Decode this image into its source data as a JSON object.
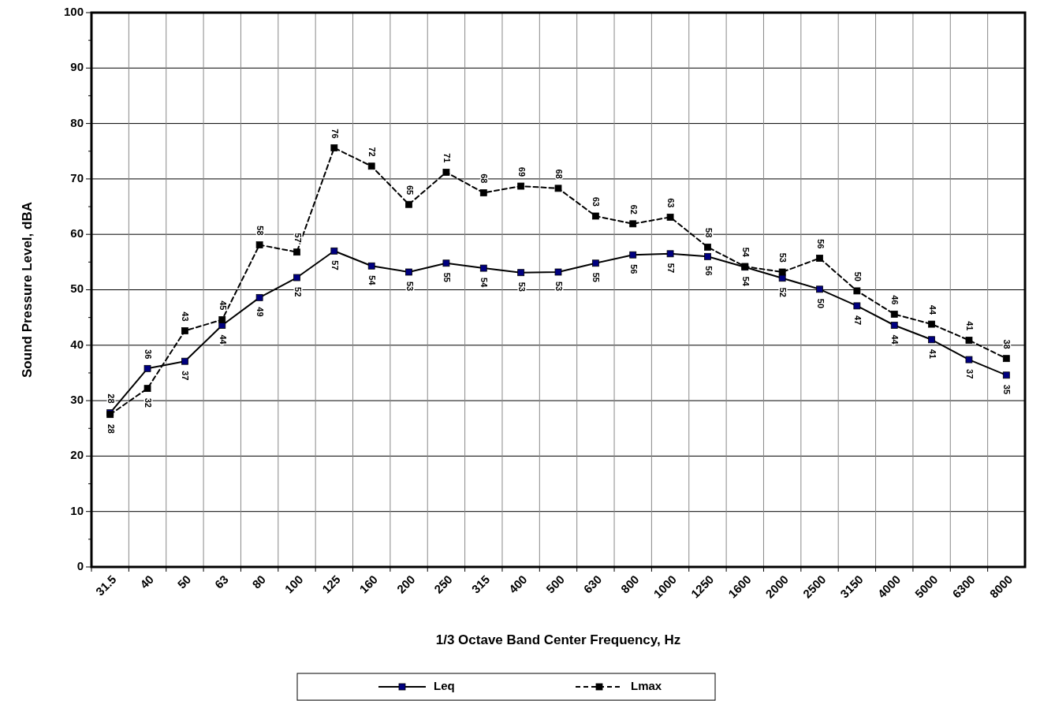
{
  "chart_data": {
    "type": "line",
    "xlabel": "1/3 Octave Band Center Frequency, Hz",
    "ylabel": "Sound Pressure Level, dBA",
    "categories": [
      "31.5",
      "40",
      "50",
      "63",
      "80",
      "100",
      "125",
      "160",
      "200",
      "250",
      "315",
      "400",
      "500",
      "630",
      "800",
      "1000",
      "1250",
      "1600",
      "2000",
      "2500",
      "3150",
      "4000",
      "5000",
      "6300",
      "8000"
    ],
    "series": [
      {
        "name": "Leq",
        "color": "#000080",
        "line_style": "solid",
        "values": [
          27.8,
          35.8,
          37.1,
          43.6,
          48.6,
          52.2,
          57.0,
          54.3,
          53.2,
          54.8,
          53.9,
          53.1,
          53.2,
          54.8,
          56.3,
          56.5,
          56.0,
          54.1,
          52.1,
          50.1,
          47.1,
          43.6,
          41.0,
          37.4,
          34.6
        ],
        "value_labels": [
          "28",
          "36",
          "37",
          "44",
          "49",
          "52",
          "57",
          "54",
          "53",
          "55",
          "54",
          "53",
          "53",
          "55",
          "56",
          "57",
          "56",
          "54",
          "52",
          "50",
          "47",
          "44",
          "41",
          "37",
          "35"
        ]
      },
      {
        "name": "Lmax",
        "color": "#000000",
        "line_style": "dashed",
        "values": [
          27.5,
          32.2,
          42.6,
          44.6,
          58.1,
          56.8,
          75.6,
          72.3,
          65.4,
          71.2,
          67.5,
          68.7,
          68.3,
          63.3,
          61.9,
          63.1,
          57.7,
          54.2,
          53.2,
          55.7,
          49.8,
          45.6,
          43.8,
          40.9,
          37.6
        ],
        "value_labels": [
          "28",
          "32",
          "43",
          "45",
          "58",
          "57",
          "76",
          "72",
          "65",
          "71",
          "68",
          "69",
          "68",
          "63",
          "62",
          "63",
          "58",
          "54",
          "53",
          "56",
          "50",
          "46",
          "44",
          "41",
          "38"
        ]
      }
    ],
    "ylim": [
      0,
      100
    ],
    "yticks": [
      0,
      10,
      20,
      30,
      40,
      50,
      60,
      70,
      80,
      90,
      100
    ],
    "grid": true,
    "legend": "bottom",
    "marker": "square"
  }
}
